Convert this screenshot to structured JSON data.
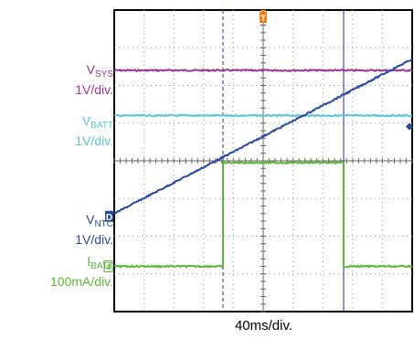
{
  "chart_data": {
    "type": "line",
    "title": "",
    "xlabel": "40ms/div.",
    "ylabel": "",
    "grid": true,
    "x_divisions": 10,
    "y_divisions": 8,
    "x_unit": "div",
    "x_range": [
      0,
      10
    ],
    "y_range": [
      0,
      8
    ],
    "series": [
      {
        "name": "VSYS",
        "name_main": "V",
        "name_sub": "SYS",
        "scale": "1V/div.",
        "color": "#9b3a8d",
        "x": [
          0,
          10
        ],
        "y": [
          6.4,
          6.4
        ]
      },
      {
        "name": "VBATT",
        "name_main": "V",
        "name_sub": "BATT",
        "scale": "1V/div.",
        "color": "#5cc6d6",
        "x": [
          0,
          10
        ],
        "y": [
          5.2,
          5.2
        ]
      },
      {
        "name": "VNTC",
        "name_main": "V",
        "name_sub": "NTC",
        "scale": "1V/div.",
        "color": "#2a4aa0",
        "x": [
          0,
          10
        ],
        "y": [
          2.6,
          6.7
        ],
        "marker": "D"
      },
      {
        "name": "IBATT",
        "name_main": "I",
        "name_sub": "BATT",
        "scale": "100mA/div.",
        "color": "#5db83a",
        "x": [
          0,
          3.65,
          3.65,
          7.7,
          7.7,
          10
        ],
        "y": [
          1.2,
          1.2,
          3.95,
          3.95,
          1.2,
          1.2
        ],
        "marker": "4"
      }
    ],
    "cursors": [
      {
        "x": 3.65,
        "style": "dashed",
        "color": "#4a4ad8"
      },
      {
        "x": 7.7,
        "style": "solid",
        "color": "#4a4ad8"
      }
    ],
    "trigger": {
      "x": 5,
      "label": "T",
      "color": "#f0801a"
    }
  }
}
